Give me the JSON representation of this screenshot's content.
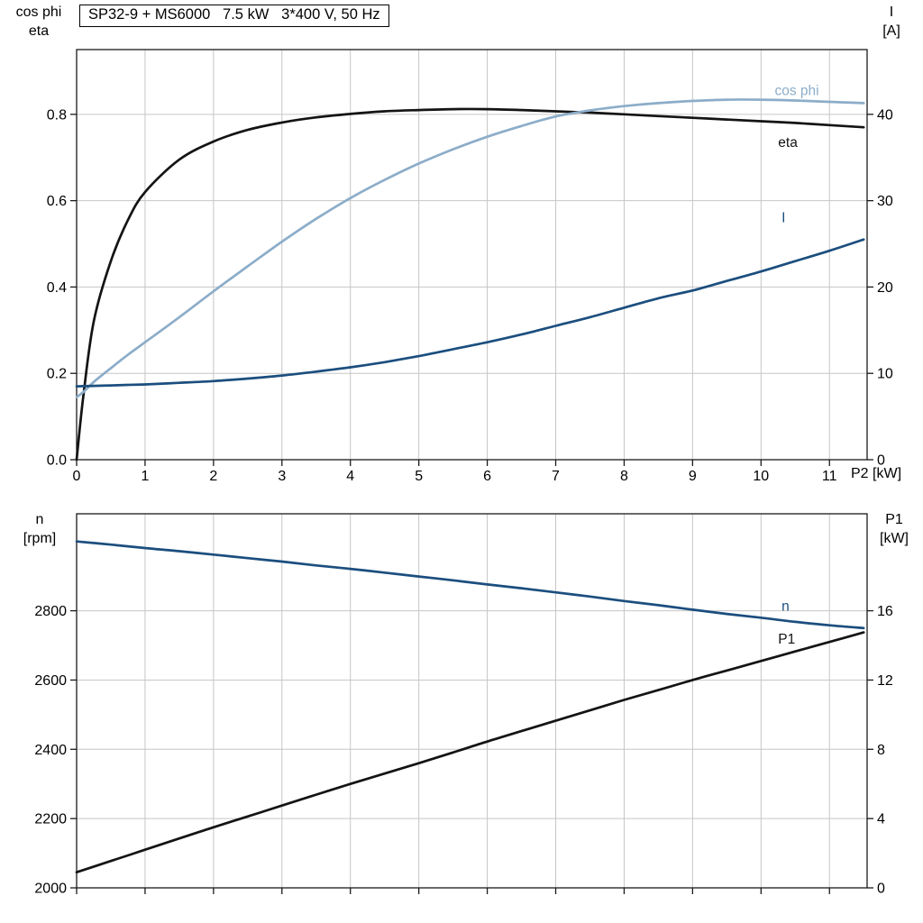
{
  "header": {
    "title": "SP32-9 + MS6000   7.5 kW   3*400 V, 50 Hz"
  },
  "axis_corner_labels": {
    "top_left": [
      "cos phi",
      "eta"
    ],
    "top_right": [
      "I",
      "[A]"
    ],
    "bottom_left": [
      "n",
      "[rpm]"
    ],
    "bottom_right": [
      "P1",
      "[kW]"
    ],
    "x_axis": "P2 [kW]"
  },
  "colors": {
    "eta": "#141414",
    "cos_phi": "#8cadc9",
    "current": "#1b4e7e",
    "speed": "#1b4e7e",
    "p1": "#141414",
    "grid": "#c6c6c6",
    "frame": "#1a1a1a"
  },
  "chart_data": [
    {
      "type": "line",
      "name": "motor-curves-vs-p2",
      "xlabel": "P2 [kW]",
      "xlim": [
        0,
        11.55
      ],
      "x_ticks": {
        "values": [
          0,
          1,
          2,
          3,
          4,
          5,
          6,
          7,
          8,
          9,
          10,
          11
        ],
        "labels": [
          "0",
          "1",
          "2",
          "3",
          "4",
          "5",
          "6",
          "7",
          "8",
          "9",
          "10",
          "11"
        ]
      },
      "left_axis": {
        "label": "cos phi / eta",
        "lim": [
          0,
          0.95
        ],
        "ticks": [
          {
            "v": 0,
            "label": "0.0"
          },
          {
            "v": 0.2,
            "label": "0.2"
          },
          {
            "v": 0.4,
            "label": "0.4"
          },
          {
            "v": 0.6,
            "label": "0.6"
          },
          {
            "v": 0.8,
            "label": "0.8"
          }
        ]
      },
      "right_axis": {
        "label": "I [A]",
        "lim": [
          0,
          47.5
        ],
        "ticks": [
          {
            "v": 0,
            "label": "0"
          },
          {
            "v": 10,
            "label": "10"
          },
          {
            "v": 20,
            "label": "20"
          },
          {
            "v": 30,
            "label": "30"
          },
          {
            "v": 40,
            "label": "40"
          }
        ]
      },
      "x": [
        0,
        0.1,
        0.25,
        0.5,
        0.75,
        1,
        1.5,
        2,
        2.5,
        3,
        3.5,
        4,
        4.5,
        5,
        5.5,
        6,
        6.5,
        7,
        7.5,
        8,
        8.5,
        9,
        9.5,
        10,
        10.5,
        11,
        11.5
      ],
      "series": [
        {
          "name": "eta",
          "axis": "left",
          "color_key": "eta",
          "label_pos": {
            "x": 10.25,
            "y": 0.725
          },
          "values": [
            0,
            0.15,
            0.32,
            0.46,
            0.555,
            0.62,
            0.695,
            0.737,
            0.764,
            0.781,
            0.793,
            0.801,
            0.807,
            0.81,
            0.812,
            0.812,
            0.81,
            0.807,
            0.804,
            0.8,
            0.796,
            0.792,
            0.788,
            0.784,
            0.78,
            0.775,
            0.77
          ]
        },
        {
          "name": "cos phi",
          "axis": "left",
          "color_key": "cos_phi",
          "label_pos": {
            "x": 10.2,
            "y": 0.845
          },
          "values": [
            0.145,
            0.157,
            0.18,
            0.212,
            0.243,
            0.272,
            0.33,
            0.39,
            0.448,
            0.505,
            0.558,
            0.606,
            0.648,
            0.686,
            0.719,
            0.748,
            0.773,
            0.795,
            0.809,
            0.819,
            0.826,
            0.831,
            0.834,
            0.834,
            0.832,
            0.829,
            0.826
          ]
        },
        {
          "name": "I",
          "axis": "right",
          "color_key": "current",
          "label_pos": {
            "x": 10.3,
            "y": 27.5
          },
          "values": [
            8.5,
            8.52,
            8.55,
            8.6,
            8.66,
            8.72,
            8.9,
            9.1,
            9.4,
            9.75,
            10.2,
            10.7,
            11.3,
            12,
            12.8,
            13.6,
            14.5,
            15.5,
            16.5,
            17.6,
            18.7,
            19.6,
            20.7,
            21.8,
            23,
            24.2,
            25.5
          ]
        }
      ]
    },
    {
      "type": "line",
      "name": "speed-and-p1-vs-p2",
      "xlabel": "",
      "xlim": [
        0,
        11.55
      ],
      "x_ticks": {
        "values": [
          0,
          1,
          2,
          3,
          4,
          5,
          6,
          7,
          8,
          9,
          10,
          11
        ],
        "labels": []
      },
      "left_axis": {
        "label": "n [rpm]",
        "lim": [
          2000,
          3080
        ],
        "ticks": [
          {
            "v": 2000,
            "label": "2000"
          },
          {
            "v": 2200,
            "label": "2200"
          },
          {
            "v": 2400,
            "label": "2400"
          },
          {
            "v": 2600,
            "label": "2600"
          },
          {
            "v": 2800,
            "label": "2800"
          }
        ]
      },
      "right_axis": {
        "label": "P1 [kW]",
        "lim": [
          0,
          21.6
        ],
        "ticks": [
          {
            "v": 0,
            "label": "0"
          },
          {
            "v": 4,
            "label": "4"
          },
          {
            "v": 8,
            "label": "8"
          },
          {
            "v": 12,
            "label": "12"
          },
          {
            "v": 16,
            "label": "16"
          }
        ]
      },
      "x": [
        0,
        0.5,
        1,
        1.5,
        2,
        2.5,
        3,
        3.5,
        4,
        4.5,
        5,
        5.5,
        6,
        6.5,
        7,
        7.5,
        8,
        8.5,
        9,
        9.5,
        10,
        10.5,
        11,
        11.5
      ],
      "series": [
        {
          "name": "n",
          "axis": "left",
          "color_key": "speed",
          "label_pos": {
            "x": 10.3,
            "y": 2800
          },
          "values": [
            3000,
            2991,
            2981,
            2972,
            2962,
            2952,
            2942,
            2931,
            2921,
            2910,
            2899,
            2888,
            2876,
            2865,
            2853,
            2841,
            2828,
            2816,
            2803,
            2791,
            2780,
            2768,
            2758,
            2750
          ]
        },
        {
          "name": "P1",
          "axis": "right",
          "color_key": "p1",
          "label_pos": {
            "x": 10.25,
            "y": 14.1
          },
          "values": [
            0.9,
            1.55,
            2.2,
            2.85,
            3.5,
            4.12,
            4.75,
            5.38,
            6,
            6.6,
            7.2,
            7.82,
            8.45,
            9.05,
            9.65,
            10.25,
            10.85,
            11.42,
            12,
            12.55,
            13.1,
            13.65,
            14.2,
            14.75
          ]
        }
      ]
    }
  ]
}
